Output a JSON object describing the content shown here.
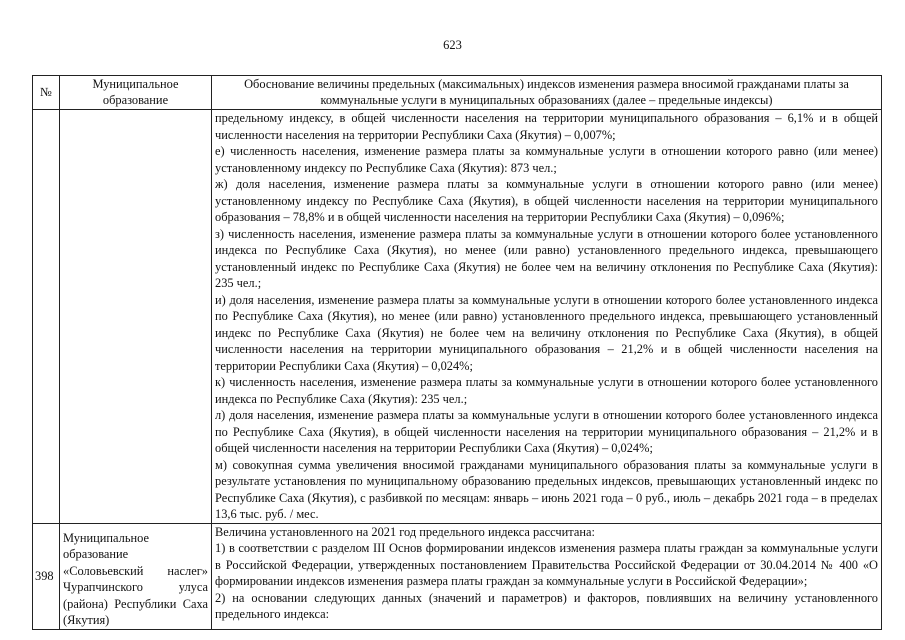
{
  "page_number": "623",
  "table": {
    "headers": {
      "number": "№",
      "municipality": "Муниципальное образование",
      "justification": "Обоснование величины предельных (максимальных) индексов изменения размера вносимой гражданами платы за коммунальные услуги в муниципальных образованиях  (далее – предельные индексы)"
    },
    "rows": [
      {
        "number": "",
        "municipality": "",
        "paragraphs": [
          "предельному индексу, в общей численности населения на территории муниципального образования – 6,1% и в общей численности населения на территории Республики Саха (Якутия) – 0,007%;",
          "е) численность населения, изменение размера платы за коммунальные услуги в отношении которого равно (или менее) установленному индексу по Республике Саха (Якутия): 873 чел.;",
          "ж) доля населения, изменение размера платы за коммунальные услуги в отношении которого равно (или менее) установленному индексу по Республике Саха (Якутия), в общей численности населения на территории муниципального образования – 78,8% и в общей численности населения на территории Республики Саха (Якутия) – 0,096%;",
          "з) численность населения, изменение размера платы за коммунальные услуги в отношении которого более установленного индекса по Республике Саха (Якутия), но менее (или равно) установленного предельного индекса, превышающего установленный индекс по Республике Саха (Якутия) не более чем на величину отклонения по Республике Саха (Якутия): 235 чел.;",
          "и) доля населения, изменение размера платы за коммунальные услуги в отношении которого более установленного индекса по Республике Саха (Якутия), но менее (или равно) установленного предельного индекса, превышающего установленный индекс по Республике Саха (Якутия) не более чем на величину отклонения по Республике Саха (Якутия), в общей численности населения на территории муниципального образования – 21,2% и в общей численности населения на территории Республики Саха (Якутия) – 0,024%;",
          "к) численность населения, изменение размера платы за коммунальные услуги в отношении которого более установленного индекса по Республике Саха (Якутия): 235 чел.;",
          "л) доля населения, изменение размера платы за коммунальные услуги в отношении которого более установленного индекса по Республике Саха (Якутия), в общей численности населения на территории муниципального образования – 21,2% и в общей численности населения на территории Республики Саха (Якутия) – 0,024%;",
          "м) совокупная сумма увеличения вносимой гражданами муниципального образования платы за коммунальные услуги в результате установления по муниципальному образованию предельных индексов, превышающих установленный индекс по Республике Саха (Якутия), с разбивкой по месяцам: январь – июнь 2021 года – 0 руб., июль – декабрь 2021 года – в пределах 13,6 тыс. руб. / мес."
        ]
      },
      {
        "number": "398",
        "municipality": "Муниципальное образование «Соловьевский наслег» Чурапчинского улуса (района) Республики Саха (Якутия)",
        "paragraphs": [
          "Величина установленного на 2021 год предельного индекса рассчитана:",
          "1) в соответствии с разделом III Основ формировании индексов изменения размера платы граждан за коммунальные услуги в Российской Федерации, утвержденных постановлением Правительства Российской Федерации от 30.04.2014 № 400 «О формировании индексов изменения размера платы граждан за коммунальные услуги в Российской Федерации»;",
          "2) на основании следующих данных (значений и параметров) и факторов, повлиявших на величину установленного предельного индекса:"
        ]
      }
    ]
  }
}
